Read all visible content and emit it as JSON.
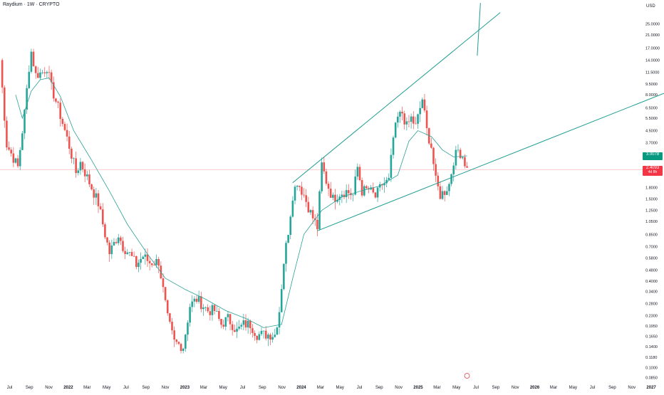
{
  "header": {
    "symbol": "Raydium",
    "interval": "1W",
    "market": "CRYPTO",
    "separator": " · "
  },
  "colors": {
    "up": "#26a69a",
    "down": "#ef5350",
    "ma": "#2aa198",
    "trendline": "#1f9e92",
    "axis_text": "#131722",
    "price_line": "#ef5350",
    "badge_teal": "#089981",
    "badge_red": "#f23645"
  },
  "badges": {
    "ma_value": "3.0078",
    "last_price": "2.4093",
    "last_sub": "4d 8h"
  },
  "chart_data": {
    "type": "candlestick",
    "title": "Raydium · 1W · CRYPTO",
    "y_scale": "log",
    "y_unit": "USD",
    "y_ticks": [
      25.0,
      21.0,
      17.0,
      14.0,
      11.5,
      9.5,
      8.0,
      6.5,
      5.5,
      4.5,
      3.7,
      3.0,
      2.5,
      1.8,
      1.5,
      1.25,
      1.05,
      0.85,
      0.7,
      0.58,
      0.48,
      0.4,
      0.34,
      0.28,
      0.23,
      0.195,
      0.165,
      0.14,
      0.118,
      0.1,
      0.085
    ],
    "y_tick_labels": [
      "25.0000",
      "21.0000",
      "17.0000",
      "14.0000",
      "11.5000",
      "9.5000",
      "8.0000",
      "6.5000",
      "5.5000",
      "4.5000",
      "3.7000",
      "3.0000",
      "2.5000",
      "1.8000",
      "1.5000",
      "1.2500",
      "1.0500",
      "0.8500",
      "0.7000",
      "0.5800",
      "0.4800",
      "0.4000",
      "0.3400",
      "0.2800",
      "0.2300",
      "0.1950",
      "0.1650",
      "0.1400",
      "0.1180",
      "0.1000",
      "0.0850"
    ],
    "x_ticks": [
      {
        "label": "Jul",
        "date": "2021-07-01"
      },
      {
        "label": "Sep",
        "date": "2021-09-01"
      },
      {
        "label": "Nov",
        "date": "2021-11-01"
      },
      {
        "label": "2022",
        "date": "2022-01-01"
      },
      {
        "label": "Mar",
        "date": "2022-03-01"
      },
      {
        "label": "May",
        "date": "2022-05-01"
      },
      {
        "label": "Jul",
        "date": "2022-07-01"
      },
      {
        "label": "Sep",
        "date": "2022-09-01"
      },
      {
        "label": "Nov",
        "date": "2022-11-01"
      },
      {
        "label": "2023",
        "date": "2023-01-01"
      },
      {
        "label": "Mar",
        "date": "2023-03-01"
      },
      {
        "label": "May",
        "date": "2023-05-01"
      },
      {
        "label": "Jul",
        "date": "2023-07-01"
      },
      {
        "label": "Sep",
        "date": "2023-09-01"
      },
      {
        "label": "Nov",
        "date": "2023-11-01"
      },
      {
        "label": "2024",
        "date": "2024-01-01"
      },
      {
        "label": "Mar",
        "date": "2024-03-01"
      },
      {
        "label": "May",
        "date": "2024-05-01"
      },
      {
        "label": "Jul",
        "date": "2024-07-01"
      },
      {
        "label": "Sep",
        "date": "2024-09-01"
      },
      {
        "label": "Nov",
        "date": "2024-11-01"
      },
      {
        "label": "2025",
        "date": "2025-01-01"
      },
      {
        "label": "Mar",
        "date": "2025-03-01"
      },
      {
        "label": "May",
        "date": "2025-05-01"
      },
      {
        "label": "Jul",
        "date": "2025-07-01"
      },
      {
        "label": "Sep",
        "date": "2025-09-01"
      },
      {
        "label": "Nov",
        "date": "2025-11-01"
      },
      {
        "label": "2026",
        "date": "2026-01-01"
      },
      {
        "label": "Mar",
        "date": "2026-03-01"
      },
      {
        "label": "May",
        "date": "2026-05-01"
      },
      {
        "label": "Jul",
        "date": "2026-07-01"
      },
      {
        "label": "Sep",
        "date": "2026-09-01"
      },
      {
        "label": "Nov",
        "date": "2026-11-01"
      },
      {
        "label": "2027",
        "date": "2027-01-01"
      }
    ],
    "x_range": [
      "2021-06-01",
      "2027-02-10"
    ],
    "y_range": [
      0.08,
      32
    ],
    "grid": false,
    "close_anchors": [
      [
        "2021-06-01",
        14.0
      ],
      [
        "2021-06-22",
        3.6
      ],
      [
        "2021-07-13",
        2.9
      ],
      [
        "2021-07-27",
        2.5
      ],
      [
        "2021-08-17",
        6.0
      ],
      [
        "2021-08-31",
        12.5
      ],
      [
        "2021-09-07",
        16.0
      ],
      [
        "2021-09-21",
        11.0
      ],
      [
        "2021-10-12",
        11.5
      ],
      [
        "2021-10-26",
        12.5
      ],
      [
        "2021-11-09",
        9.0
      ],
      [
        "2021-11-30",
        6.5
      ],
      [
        "2021-12-21",
        4.5
      ],
      [
        "2022-01-04",
        3.5
      ],
      [
        "2022-01-25",
        2.3
      ],
      [
        "2022-02-08",
        2.7
      ],
      [
        "2022-02-22",
        2.3
      ],
      [
        "2022-03-15",
        1.8
      ],
      [
        "2022-04-05",
        1.4
      ],
      [
        "2022-04-26",
        0.85
      ],
      [
        "2022-05-10",
        0.63
      ],
      [
        "2022-06-07",
        0.85
      ],
      [
        "2022-06-21",
        0.7
      ],
      [
        "2022-07-12",
        0.62
      ],
      [
        "2022-08-02",
        0.52
      ],
      [
        "2022-08-23",
        0.6
      ],
      [
        "2022-09-13",
        0.54
      ],
      [
        "2022-10-11",
        0.55
      ],
      [
        "2022-11-08",
        0.22
      ],
      [
        "2022-11-29",
        0.15
      ],
      [
        "2022-12-27",
        0.14
      ],
      [
        "2023-01-17",
        0.27
      ],
      [
        "2023-02-07",
        0.3
      ],
      [
        "2023-02-21",
        0.28
      ],
      [
        "2023-03-14",
        0.25
      ],
      [
        "2023-04-04",
        0.25
      ],
      [
        "2023-04-25",
        0.2
      ],
      [
        "2023-05-16",
        0.22
      ],
      [
        "2023-06-13",
        0.18
      ],
      [
        "2023-07-04",
        0.2
      ],
      [
        "2023-07-25",
        0.2
      ],
      [
        "2023-08-15",
        0.17
      ],
      [
        "2023-09-12",
        0.17
      ],
      [
        "2023-10-10",
        0.17
      ],
      [
        "2023-10-24",
        0.25
      ],
      [
        "2023-11-07",
        0.55
      ],
      [
        "2023-11-21",
        0.9
      ],
      [
        "2023-12-05",
        1.6
      ],
      [
        "2023-12-19",
        2.0
      ],
      [
        "2024-01-09",
        1.6
      ],
      [
        "2024-01-30",
        1.2
      ],
      [
        "2024-02-20",
        0.95
      ],
      [
        "2024-03-05",
        2.6
      ],
      [
        "2024-03-19",
        2.0
      ],
      [
        "2024-04-09",
        1.5
      ],
      [
        "2024-04-30",
        1.65
      ],
      [
        "2024-05-21",
        1.7
      ],
      [
        "2024-06-11",
        1.6
      ],
      [
        "2024-06-25",
        2.5
      ],
      [
        "2024-07-09",
        1.7
      ],
      [
        "2024-07-30",
        1.75
      ],
      [
        "2024-08-20",
        1.55
      ],
      [
        "2024-09-10",
        1.9
      ],
      [
        "2024-10-01",
        2.0
      ],
      [
        "2024-10-15",
        4.0
      ],
      [
        "2024-10-29",
        5.5
      ],
      [
        "2024-11-12",
        6.0
      ],
      [
        "2024-11-26",
        4.8
      ],
      [
        "2024-12-10",
        5.5
      ],
      [
        "2024-12-24",
        4.8
      ],
      [
        "2025-01-14",
        7.5
      ],
      [
        "2025-01-28",
        4.5
      ],
      [
        "2025-02-11",
        3.5
      ],
      [
        "2025-02-25",
        2.0
      ],
      [
        "2025-03-11",
        1.6
      ],
      [
        "2025-03-25",
        1.7
      ],
      [
        "2025-04-08",
        1.9
      ],
      [
        "2025-04-22",
        2.8
      ],
      [
        "2025-05-06",
        3.3
      ],
      [
        "2025-05-20",
        3.0
      ],
      [
        "2025-06-03",
        2.41
      ]
    ],
    "moving_average": [
      [
        "2021-07-20",
        8.0
      ],
      [
        "2021-08-10",
        5.5
      ],
      [
        "2021-09-07",
        8.5
      ],
      [
        "2021-10-05",
        10.2
      ],
      [
        "2021-11-02",
        10.5
      ],
      [
        "2021-12-07",
        7.8
      ],
      [
        "2022-01-18",
        4.5
      ],
      [
        "2022-03-15",
        2.8
      ],
      [
        "2022-05-10",
        1.7
      ],
      [
        "2022-07-05",
        1.0
      ],
      [
        "2022-09-06",
        0.62
      ],
      [
        "2022-11-01",
        0.42
      ],
      [
        "2023-01-03",
        0.35
      ],
      [
        "2023-03-07",
        0.3
      ],
      [
        "2023-05-09",
        0.25
      ],
      [
        "2023-07-11",
        0.22
      ],
      [
        "2023-09-05",
        0.19
      ],
      [
        "2023-10-31",
        0.2
      ],
      [
        "2023-12-05",
        0.42
      ],
      [
        "2024-01-09",
        0.85
      ],
      [
        "2024-03-05",
        1.25
      ],
      [
        "2024-05-07",
        1.55
      ],
      [
        "2024-07-02",
        1.7
      ],
      [
        "2024-09-03",
        1.85
      ],
      [
        "2024-10-29",
        2.2
      ],
      [
        "2024-12-03",
        3.8
      ],
      [
        "2024-12-31",
        4.5
      ],
      [
        "2025-02-11",
        4.1
      ],
      [
        "2025-03-18",
        3.3
      ],
      [
        "2025-04-22",
        2.95
      ],
      [
        "2025-06-03",
        3.0
      ]
    ],
    "trendlines": [
      {
        "name": "upper-channel",
        "points": [
          [
            "2023-12-05",
            1.95
          ],
          [
            "2025-09-15",
            30.0
          ]
        ]
      },
      {
        "name": "lower-support",
        "points": [
          [
            "2024-02-20",
            0.9
          ],
          [
            "2027-02-10",
            8.2
          ]
        ]
      },
      {
        "name": "spike-line",
        "points": [
          [
            "2025-07-05",
            15.0
          ],
          [
            "2025-07-15",
            35.0
          ]
        ]
      }
    ],
    "last_price": 2.4093
  },
  "axis": {
    "unit_label": "USD"
  }
}
